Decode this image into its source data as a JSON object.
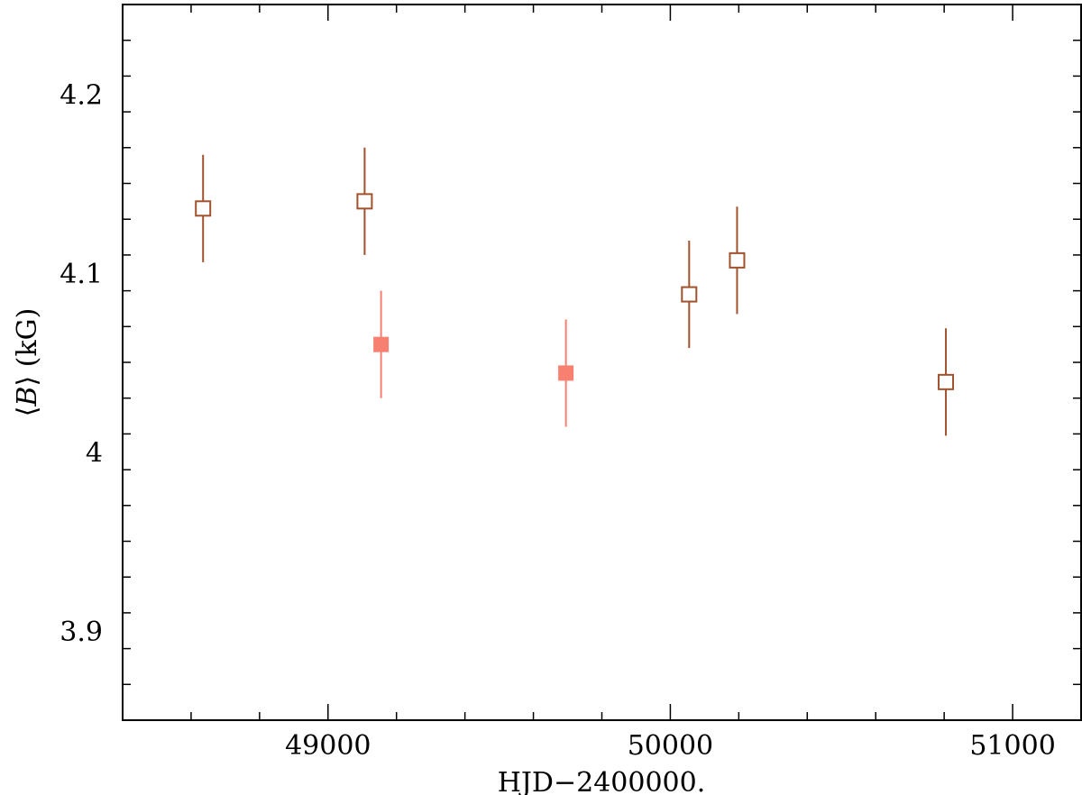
{
  "chart_data": {
    "type": "scatter",
    "title": "",
    "xlabel": "HJD−2400000.",
    "ylabel": "⟨B⟩ (kG)",
    "ylabel_parts": {
      "open": "⟨",
      "var": "B",
      "close": "⟩",
      "unit": " (kG)"
    },
    "xlim": [
      48400,
      51200
    ],
    "ylim": [
      3.85,
      4.25
    ],
    "x_major_ticks": [
      49000,
      50000,
      51000
    ],
    "x_tick_labels": [
      "49000",
      "50000",
      "51000"
    ],
    "x_minor_step": 200,
    "y_major_ticks": [
      3.9,
      4.0,
      4.1,
      4.2
    ],
    "y_tick_labels": [
      "3.9",
      "4",
      "4.1",
      "4.2"
    ],
    "y_minor_step": 0.02,
    "grid": false,
    "series": [
      {
        "marker": "open-square",
        "color": "#A0522D",
        "points": [
          {
            "x": 48635,
            "y": 4.136,
            "err": 0.03
          },
          {
            "x": 49107,
            "y": 4.14,
            "err": 0.03
          },
          {
            "x": 50055,
            "y": 4.088,
            "err": 0.03
          },
          {
            "x": 50195,
            "y": 4.107,
            "err": 0.03
          },
          {
            "x": 50805,
            "y": 4.039,
            "err": 0.03
          }
        ]
      },
      {
        "marker": "filled-square",
        "color": "#F88070",
        "points": [
          {
            "x": 49155,
            "y": 4.06,
            "err": 0.03
          },
          {
            "x": 49695,
            "y": 4.044,
            "err": 0.03
          }
        ]
      }
    ]
  }
}
